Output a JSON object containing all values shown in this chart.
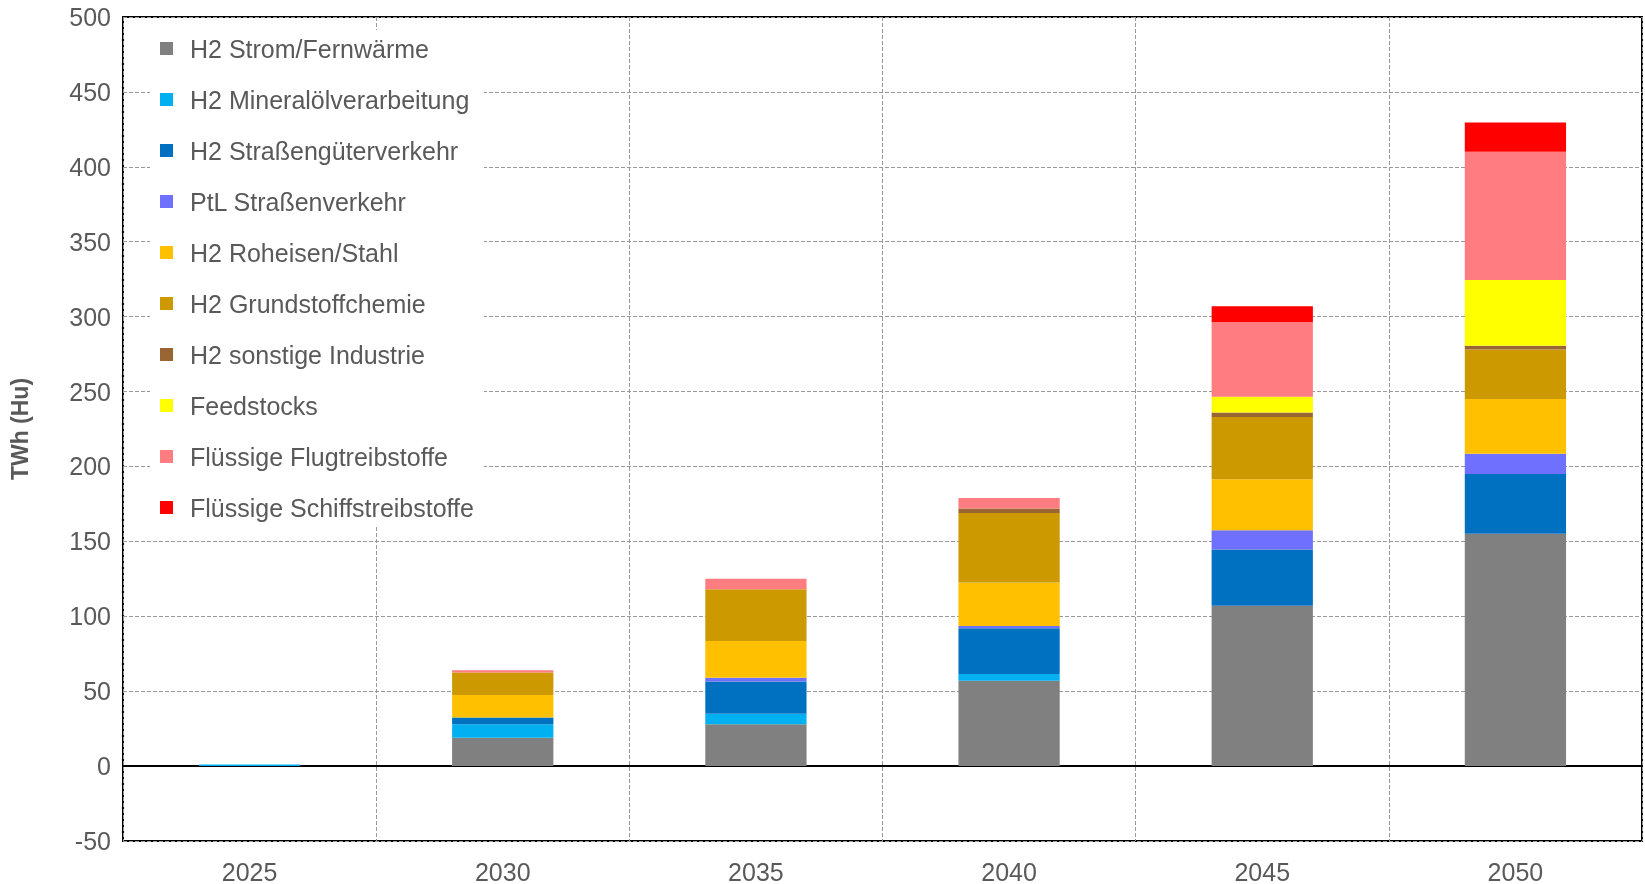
{
  "chart_data": {
    "type": "bar",
    "stacked": true,
    "ylabel": "TWh (Hu)",
    "categories": [
      "2025",
      "2030",
      "2035",
      "2040",
      "2045",
      "2050"
    ],
    "ylim": [
      -50,
      500
    ],
    "yticks": [
      -50,
      0,
      50,
      100,
      150,
      200,
      250,
      300,
      350,
      400,
      450,
      500
    ],
    "grid": true,
    "legend": "top left",
    "series": [
      {
        "name": "H2 Strom/Fernwärme",
        "color": "#808080",
        "values": [
          0,
          19,
          28,
          57,
          107,
          155
        ]
      },
      {
        "name": "H2 Mineralölverarbeitung",
        "color": "#00b0f0",
        "values": [
          1,
          9,
          7,
          4.5,
          0,
          0
        ]
      },
      {
        "name": "H2 Straßengüterverkehr",
        "color": "#0070c0",
        "values": [
          0,
          4.5,
          21.5,
          30.5,
          37.5,
          40
        ]
      },
      {
        "name": "PtL Straßenverkehr",
        "color": "#7070ff",
        "values": [
          0,
          0,
          2.5,
          1.5,
          13,
          13.5
        ]
      },
      {
        "name": "H2 Roheisen/Stahl",
        "color": "#ffc000",
        "values": [
          0,
          15,
          24.5,
          29,
          34,
          36.5
        ]
      },
      {
        "name": "H2 Grundstoffchemie",
        "color": "#cc9900",
        "values": [
          0,
          15,
          34.5,
          46.5,
          41.5,
          33
        ]
      },
      {
        "name": "H2 sonstige Industrie",
        "color": "#996633",
        "values": [
          0,
          0,
          0,
          3,
          3,
          2.5
        ]
      },
      {
        "name": "Feedstocks",
        "color": "#ffff00",
        "values": [
          0,
          0,
          0,
          0,
          10.5,
          44
        ]
      },
      {
        "name": "Flüssige Flugtreibstoffe",
        "color": "#ff7c80",
        "values": [
          0,
          1.5,
          7,
          7,
          50,
          85.5
        ]
      },
      {
        "name": "Flüssige Schiffstreibstoffe",
        "color": "#ff0000",
        "values": [
          0,
          0,
          0,
          0,
          10.5,
          19.5
        ]
      }
    ]
  }
}
